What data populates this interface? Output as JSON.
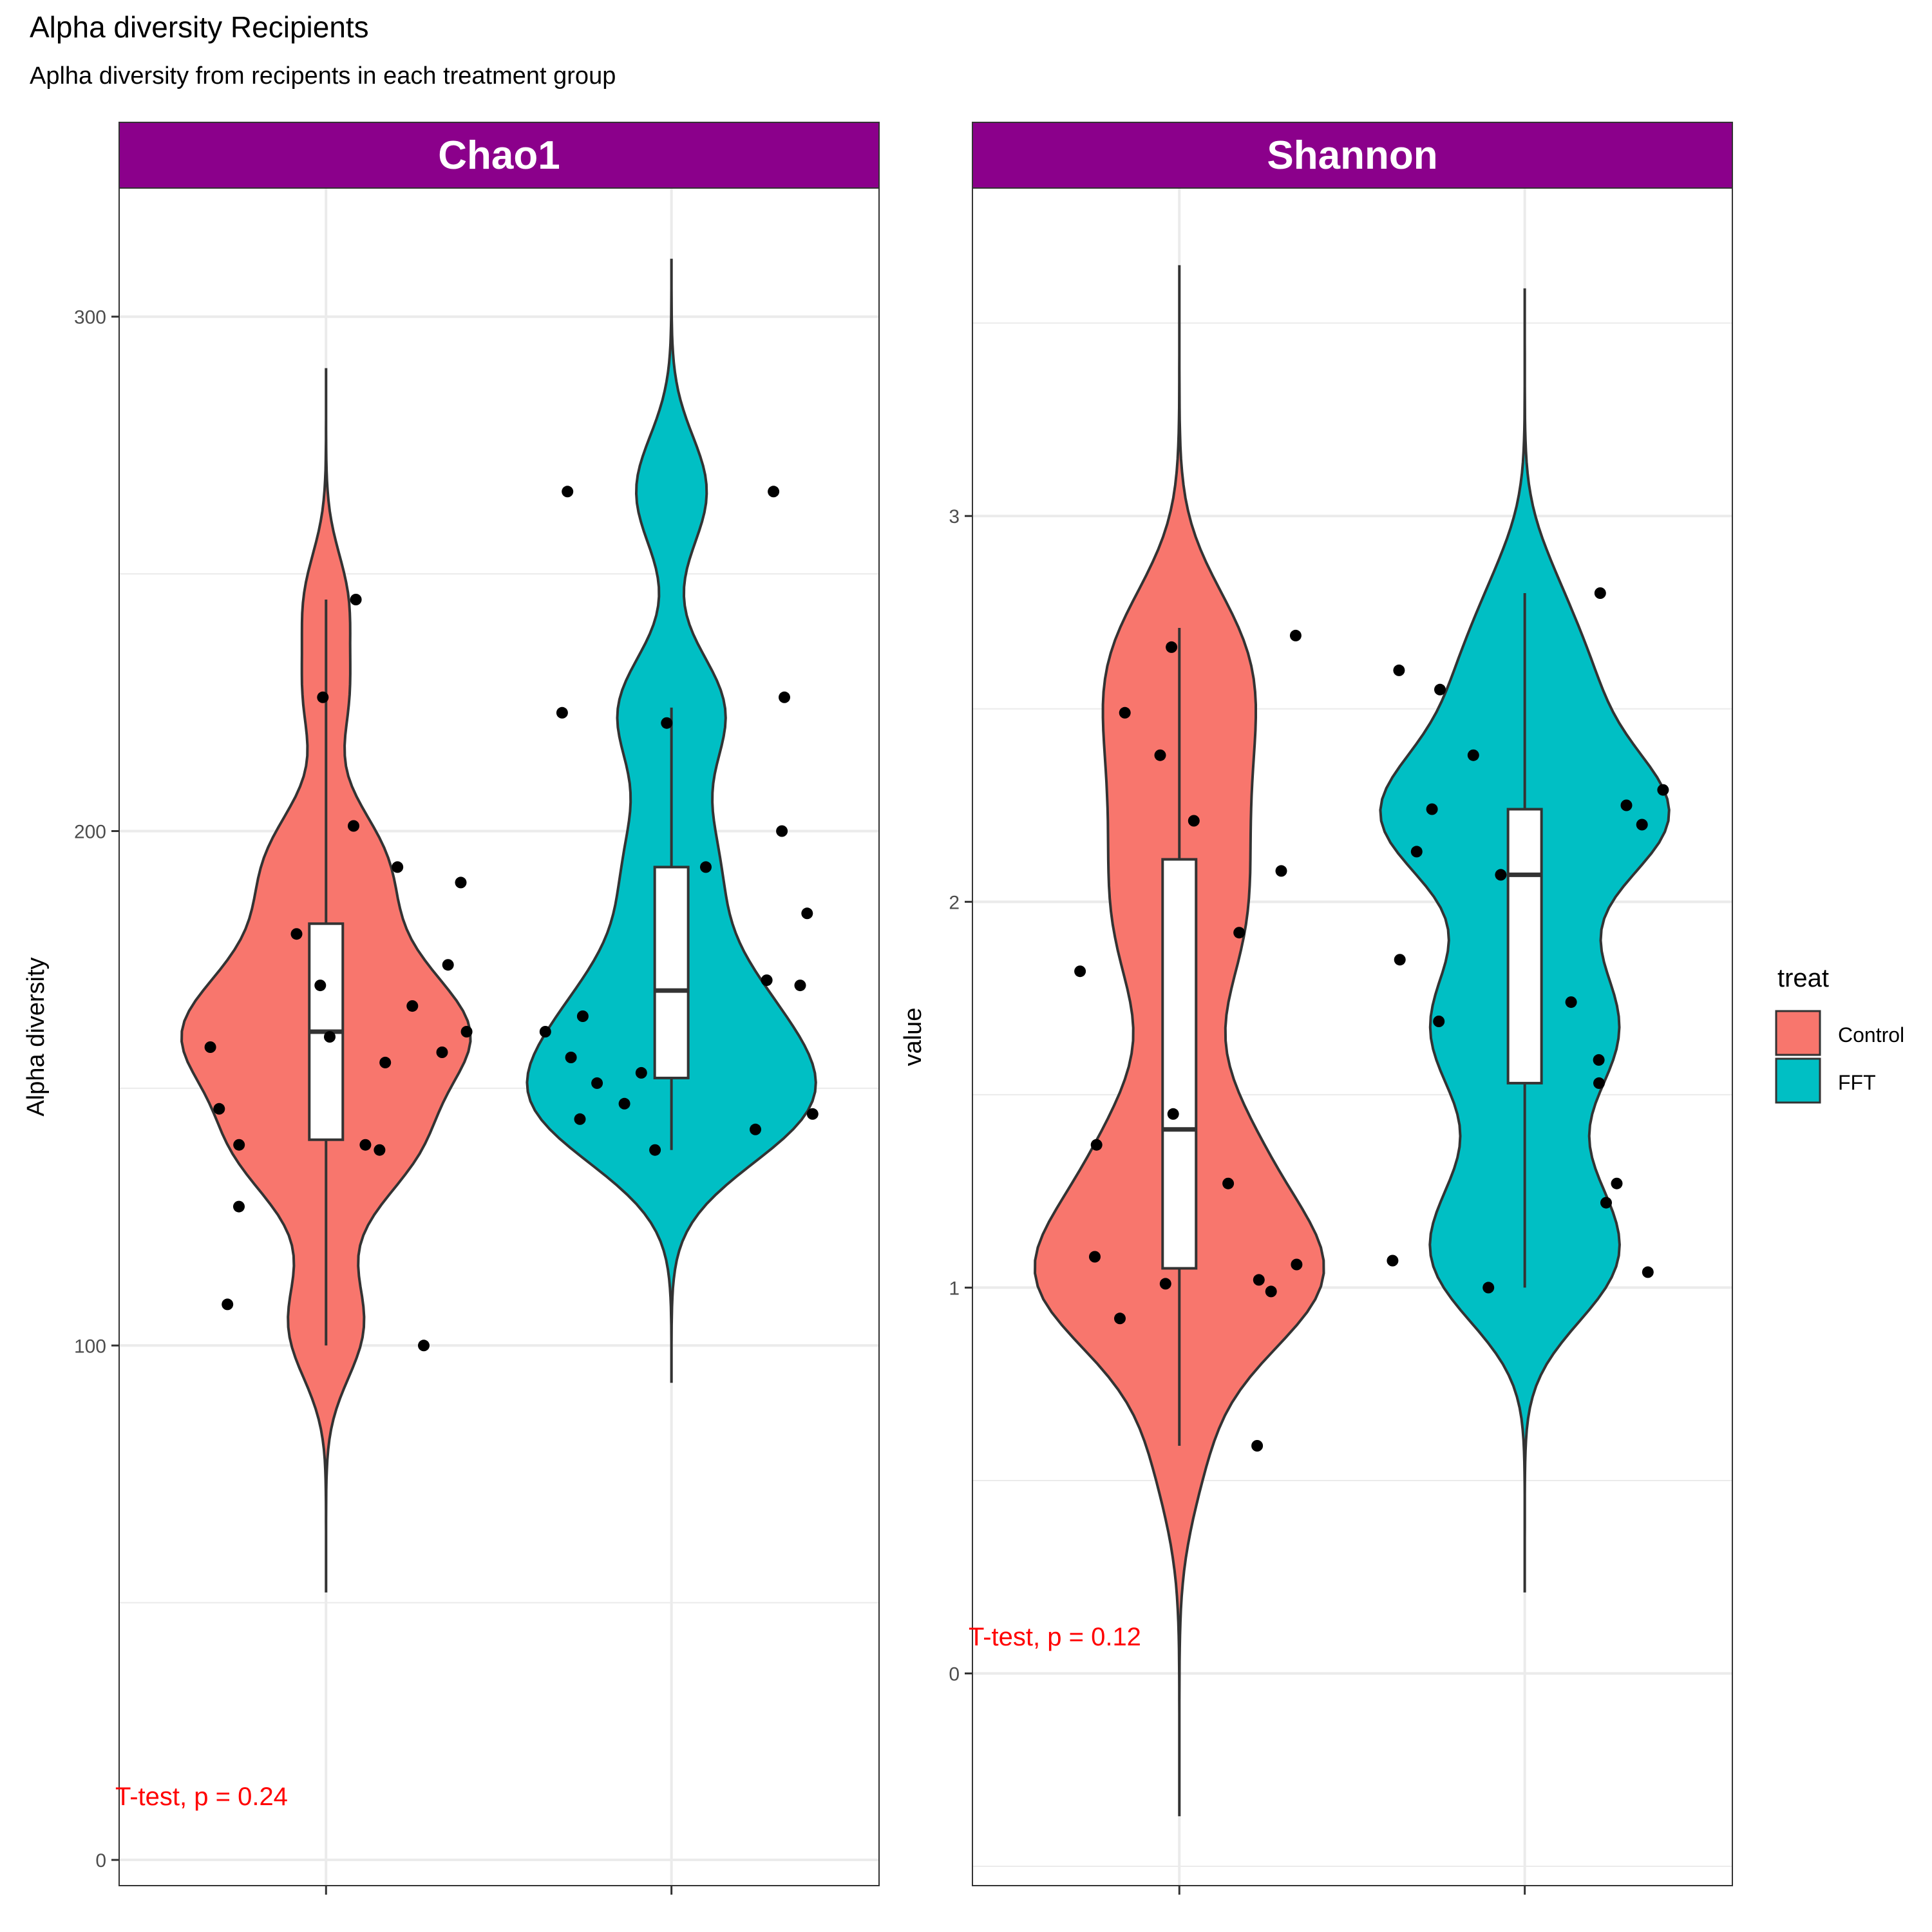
{
  "title": "Alpha diversity Recipients",
  "subtitle": "Aplha diversity from recipents in each treatment group",
  "legend": {
    "title": "treat",
    "placement": "right",
    "items": [
      {
        "label": "Control",
        "color": "#F8766D"
      },
      {
        "label": "FFT",
        "color": "#00BFC4"
      }
    ]
  },
  "colors": {
    "strip": "#8B008B",
    "Control": "#F8766D",
    "FFT": "#00BFC4",
    "annotation": "#FF0000"
  },
  "chart_data": [
    {
      "type": "violin",
      "facet": "Chao1",
      "ylabel": "Alpha diversity",
      "xlabel": "",
      "ylim": [
        -5,
        325
      ],
      "yticks": [
        "0",
        "100",
        "200",
        "300"
      ],
      "grid": true,
      "annotation": "T-test, p = 0.24",
      "groups": [
        {
          "name": "Control",
          "violin_range": [
            52,
            290
          ],
          "box": {
            "min": 100,
            "q1": 140,
            "median": 161,
            "q3": 182,
            "max": 245
          },
          "points": [
            100,
            108,
            127,
            138,
            139,
            139,
            146,
            155,
            157,
            158,
            160,
            161,
            166,
            170,
            174,
            180,
            190,
            193,
            201,
            226,
            245
          ]
        },
        {
          "name": "FFT",
          "violin_range": [
            93,
            311
          ],
          "box": {
            "min": 138,
            "q1": 152,
            "median": 169,
            "q3": 193,
            "max": 224
          },
          "points": [
            138,
            142,
            144,
            145,
            147,
            151,
            153,
            156,
            161,
            164,
            170,
            171,
            184,
            193,
            200,
            221,
            223,
            226,
            266,
            266
          ]
        }
      ]
    },
    {
      "type": "violin",
      "facet": "Shannon",
      "ylabel": "value",
      "xlabel": "",
      "ylim": [
        -0.55,
        3.85
      ],
      "yticks": [
        "0",
        "1",
        "2",
        "3"
      ],
      "grid": true,
      "annotation": "T-test, p = 0.12",
      "groups": [
        {
          "name": "Control",
          "violin_range": [
            -0.37,
            3.65
          ],
          "box": {
            "min": 0.59,
            "q1": 1.05,
            "median": 1.41,
            "q3": 2.11,
            "max": 2.71
          },
          "points": [
            0.59,
            0.92,
            0.99,
            1.01,
            1.02,
            1.06,
            1.08,
            1.27,
            1.37,
            1.45,
            1.82,
            1.92,
            2.08,
            2.21,
            2.38,
            2.49,
            2.66,
            2.69
          ]
        },
        {
          "name": "FFT",
          "violin_range": [
            0.21,
            3.59
          ],
          "box": {
            "min": 1.0,
            "q1": 1.53,
            "median": 2.07,
            "q3": 2.24,
            "max": 2.8
          },
          "points": [
            1.0,
            1.04,
            1.07,
            1.22,
            1.27,
            1.53,
            1.59,
            1.69,
            1.74,
            1.85,
            2.07,
            2.13,
            2.2,
            2.24,
            2.25,
            2.29,
            2.38,
            2.55,
            2.6,
            2.8
          ]
        }
      ]
    }
  ]
}
